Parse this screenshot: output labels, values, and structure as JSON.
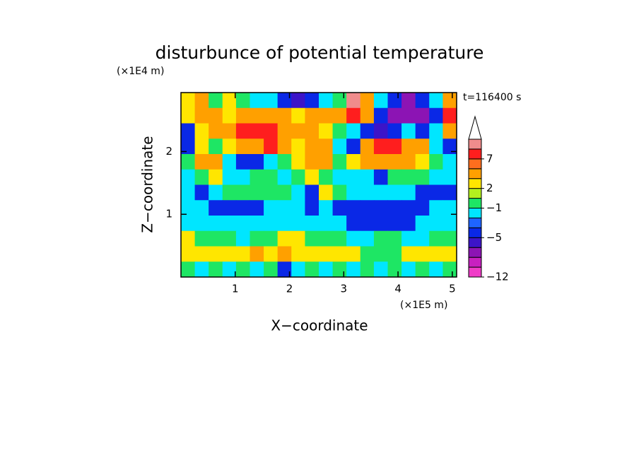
{
  "chart_data": {
    "type": "contour",
    "title": "disturbunce of potential temperature",
    "y_unit": "(×1E4 m)",
    "x_unit": "(×1E5 m)",
    "annotation": "t=116400 s",
    "xlabel": "X−coordinate",
    "ylabel": "Z−coordinate",
    "xlim": [
      0,
      5.08
    ],
    "ylim": [
      0,
      2.94
    ],
    "xticks": [
      1,
      2,
      3,
      4,
      5
    ],
    "yticks": [
      1,
      2
    ],
    "x": [
      0.13,
      0.38,
      0.64,
      0.89,
      1.14,
      1.4,
      1.65,
      1.91,
      2.16,
      2.41,
      2.67,
      2.92,
      3.18,
      3.43,
      3.68,
      3.94,
      4.19,
      4.45,
      4.7,
      4.95
    ],
    "y": [
      2.82,
      2.57,
      2.33,
      2.08,
      1.84,
      1.59,
      1.35,
      1.1,
      0.86,
      0.61,
      0.37,
      0.12
    ],
    "z": [
      [
        2.5,
        4,
        -0.5,
        2.5,
        -0.5,
        -2,
        -2,
        -4.5,
        -5.5,
        -4.5,
        -2,
        -0.5,
        10,
        4,
        -2,
        -4.5,
        -7,
        -4.5,
        -2,
        4
      ],
      [
        2.5,
        4,
        4,
        2.5,
        4,
        4,
        4,
        4,
        2.5,
        4,
        4,
        4,
        8,
        4,
        -4.5,
        -7,
        -7,
        -7,
        -4.5,
        8
      ],
      [
        -4.5,
        2.5,
        4,
        4,
        8,
        8,
        8,
        4,
        4,
        4,
        2.5,
        -0.5,
        -2,
        -4.5,
        -5.5,
        -4.5,
        -2,
        -4.5,
        -2,
        4
      ],
      [
        -4.5,
        2.5,
        -0.5,
        2.5,
        4,
        4,
        8,
        4,
        2.5,
        4,
        4,
        -2,
        -4.5,
        4,
        8,
        8,
        4,
        4,
        -2,
        -4.5
      ],
      [
        -0.5,
        4,
        4,
        -2,
        -4.5,
        -4.5,
        -2,
        -0.5,
        2.5,
        4,
        4,
        -0.5,
        2.5,
        4,
        4,
        4,
        4,
        2.5,
        -0.5,
        -2
      ],
      [
        -2,
        -0.5,
        2.5,
        -2,
        -2,
        -0.5,
        -0.5,
        -2,
        -0.5,
        2.5,
        -0.5,
        -2,
        -2,
        -2,
        -4.5,
        -0.5,
        -0.5,
        -0.5,
        -2,
        -2
      ],
      [
        -2,
        -4.5,
        -2,
        -0.5,
        -0.5,
        -0.5,
        -0.5,
        -0.5,
        -2,
        -4.5,
        2.5,
        -0.5,
        -2,
        -2,
        -2,
        -2,
        -2,
        -4.5,
        -4.5,
        -4.5
      ],
      [
        -2,
        -2,
        -4.5,
        -4.5,
        -4.5,
        -4.5,
        -2,
        -2,
        -2,
        -4.5,
        -2,
        -4.5,
        -4.5,
        -4.5,
        -4.5,
        -4.5,
        -4.5,
        -4.5,
        -2,
        -2
      ],
      [
        -2,
        -2,
        -2,
        -2,
        -2,
        -2,
        -2,
        -2,
        -2,
        -2,
        -2,
        -2,
        -4.5,
        -4.5,
        -4.5,
        -4.5,
        -4.5,
        -2,
        -2,
        -2
      ],
      [
        2.5,
        -0.5,
        -0.5,
        -0.5,
        -2,
        -0.5,
        -0.5,
        2.5,
        2.5,
        -0.5,
        -0.5,
        -0.5,
        -2,
        -2,
        -0.5,
        -0.5,
        -2,
        -2,
        -0.5,
        -0.5
      ],
      [
        2.5,
        2.5,
        2.5,
        2.5,
        2.5,
        4,
        2.5,
        4,
        2.5,
        2.5,
        2.5,
        2.5,
        2.5,
        -0.5,
        -0.5,
        -0.5,
        2.5,
        2.5,
        2.5,
        2.5
      ],
      [
        -0.5,
        -2,
        -0.5,
        -2,
        -0.5,
        -2,
        -0.5,
        -4.5,
        -2,
        -0.5,
        -2,
        -0.5,
        -2,
        -0.5,
        -2,
        -0.5,
        -2,
        -0.5,
        -2,
        -0.5
      ]
    ],
    "colorbar": {
      "levels": [
        -12,
        -10,
        -8,
        -6,
        -5,
        -4,
        -3,
        -1,
        0,
        2,
        3,
        5,
        7,
        9,
        11
      ],
      "colors": [
        "#f03cc8",
        "#c820c0",
        "#8c14b4",
        "#3c14c8",
        "#0a28e6",
        "#1e64ff",
        "#00e6ff",
        "#1ee664",
        "#b4f01e",
        "#ffe600",
        "#ffa000",
        "#ff6e1e",
        "#ff1e1e",
        "#f08c8c"
      ],
      "extend_color": "#ffffff",
      "ticks": [
        {
          "value": -12,
          "label": "−12"
        },
        {
          "value": -5,
          "label": "−5"
        },
        {
          "value": -1,
          "label": "−1"
        },
        2,
        7
      ]
    }
  }
}
